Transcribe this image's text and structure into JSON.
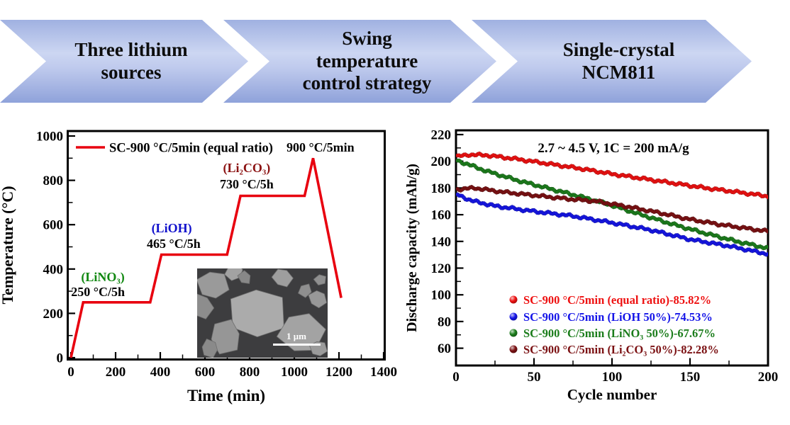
{
  "banners": [
    {
      "label": "Three lithium\nsources"
    },
    {
      "label": "Swing\ntemperature\ncontrol strategy"
    },
    {
      "label": "Single-crystal\nNCM811"
    }
  ],
  "colors": {
    "banner_blue": "#9fb0e0",
    "profile_red": "#e8000f",
    "lino3_green": "#118811",
    "lioh_blue": "#1111cc",
    "li2co3_dark_red": "#8b1212",
    "series_red": "#ee1111",
    "series_blue": "#1515e8",
    "series_green": "#1b7d1b",
    "series_maroon": "#7b1113"
  },
  "chart_data": [
    {
      "type": "line",
      "title": "",
      "xlabel": "Time (min)",
      "ylabel": "Temperature (°C)",
      "xlim": [
        0,
        1400
      ],
      "ylim": [
        0,
        1000
      ],
      "x_major_ticks": [
        0,
        200,
        400,
        600,
        800,
        1000,
        1200,
        1400
      ],
      "y_major_ticks": [
        0,
        200,
        400,
        600,
        800,
        1000
      ],
      "x_minor_step": 100,
      "y_minor_step": 100,
      "grid": false,
      "legend": {
        "position": "top-left-inside",
        "entries": [
          {
            "label": "SC-900 °C/5min (equal ratio)",
            "color": "#e8000f",
            "marker": "line"
          }
        ]
      },
      "series": [
        {
          "name": "SC-900 °C/5min (equal ratio)",
          "color": "#e8000f",
          "points": [
            [
              0,
              0
            ],
            [
              55,
              250
            ],
            [
              355,
              250
            ],
            [
              405,
              465
            ],
            [
              699,
              465
            ],
            [
              759,
              730
            ],
            [
              1046,
              730
            ],
            [
              1084,
              900
            ],
            [
              1210,
              270
            ]
          ]
        }
      ],
      "annotations": [
        {
          "text": "(LiNO₃)",
          "color": "#118811",
          "x": 143,
          "y": 364,
          "size": 18
        },
        {
          "text": "250 °C/5h",
          "color": "#000000",
          "x": 121,
          "y": 297,
          "size": 18
        },
        {
          "text": "(LiOH)",
          "color": "#1111cc",
          "x": 451,
          "y": 585,
          "size": 18
        },
        {
          "text": "465 °C/5h",
          "color": "#000000",
          "x": 460,
          "y": 514,
          "size": 18
        },
        {
          "text": "(Li₂CO₃)",
          "color": "#8b1212",
          "x": 787,
          "y": 856,
          "size": 18
        },
        {
          "text": "730 °C/5h",
          "color": "#000000",
          "x": 787,
          "y": 783,
          "size": 18
        },
        {
          "text": "900 °C/5min",
          "color": "#000000",
          "x": 1117,
          "y": 949,
          "size": 18
        }
      ],
      "inset": {
        "type": "sem_image",
        "scale_label": "1 μm"
      }
    },
    {
      "type": "scatter",
      "title": "",
      "xlabel": "Cycle number",
      "ylabel": "Discharge capacity (mAh/g)",
      "annotation": "2.7 ~ 4.5 V, 1C = 200 mA/g",
      "xlim": [
        0,
        200
      ],
      "ylim": [
        60,
        220
      ],
      "x_major_ticks": [
        0,
        50,
        100,
        150,
        200
      ],
      "y_major_ticks": [
        60,
        80,
        100,
        120,
        140,
        160,
        180,
        200,
        220
      ],
      "x_minor_step": 25,
      "y_minor_step": 10,
      "grid": false,
      "legend_position": "bottom-left-inside",
      "series": [
        {
          "name": "SC-900 °C/5min (equal ratio)-85.82%",
          "color": "#ee1111",
          "retention": "85.82%",
          "anchors": [
            [
              1,
              203.5
            ],
            [
              8,
              205
            ],
            [
              20,
              204.5
            ],
            [
              40,
              201.5
            ],
            [
              60,
              198
            ],
            [
              80,
              194.5
            ],
            [
              100,
              190.5
            ],
            [
              120,
              187
            ],
            [
              140,
              183.5
            ],
            [
              160,
              180
            ],
            [
              180,
              177
            ],
            [
              200,
              173.8
            ]
          ]
        },
        {
          "name": "SC-900 °C/5min (LiOH 50%)-74.53%",
          "color": "#1515e8",
          "retention": "74.53%",
          "anchors": [
            [
              1,
              175
            ],
            [
              10,
              170.5
            ],
            [
              25,
              166.5
            ],
            [
              50,
              162.5
            ],
            [
              75,
              159
            ],
            [
              100,
              154
            ],
            [
              125,
              148.5
            ],
            [
              150,
              141.5
            ],
            [
              175,
              136.5
            ],
            [
              200,
              130.5
            ]
          ]
        },
        {
          "name": "SC-900 °C/5min (LiNO₃ 50%)-67.67%",
          "color": "#1b7d1b",
          "retention": "67.67%",
          "anchors": [
            [
              1,
              200.5
            ],
            [
              20,
              192.5
            ],
            [
              40,
              185.5
            ],
            [
              60,
              179.5
            ],
            [
              80,
              173.5
            ],
            [
              100,
              167
            ],
            [
              120,
              159.5
            ],
            [
              140,
              152.5
            ],
            [
              160,
              146
            ],
            [
              180,
              140
            ],
            [
              200,
              134.8
            ]
          ]
        },
        {
          "name": "SC-900 °C/5min (Li₂CO₃ 50%)-82.28%",
          "color": "#7b1113",
          "retention": "82.28%",
          "anchors": [
            [
              1,
              179
            ],
            [
              12,
              180
            ],
            [
              30,
              177
            ],
            [
              50,
              174.5
            ],
            [
              70,
              172
            ],
            [
              90,
              170
            ],
            [
              110,
              166
            ],
            [
              130,
              161.5
            ],
            [
              150,
              156.5
            ],
            [
              170,
              152.5
            ],
            [
              185,
              150
            ],
            [
              200,
              147.5
            ]
          ]
        }
      ]
    }
  ]
}
